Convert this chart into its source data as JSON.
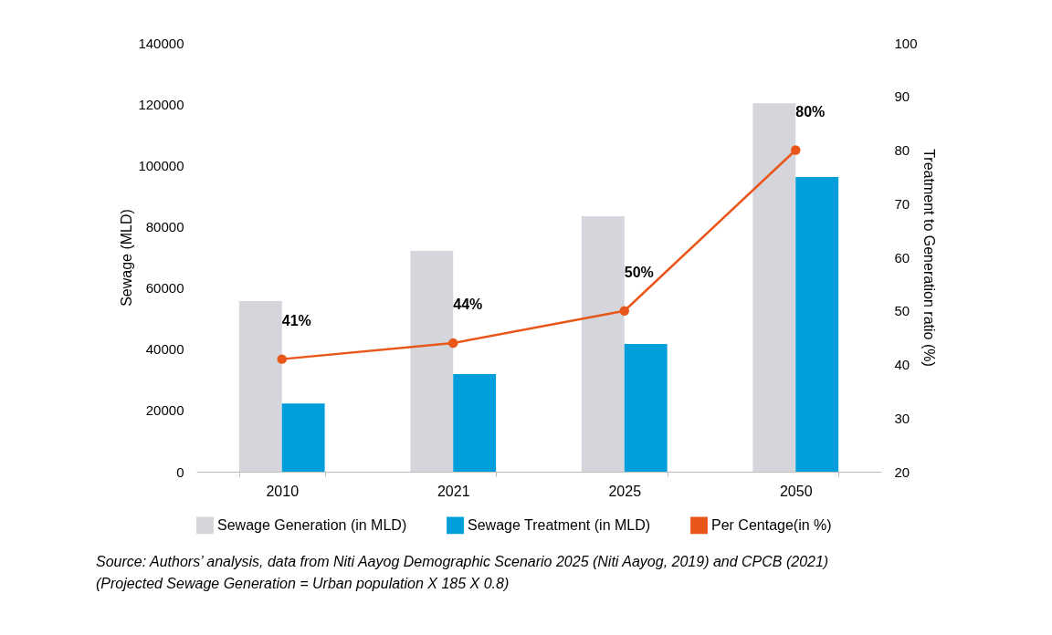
{
  "chart_data": {
    "type": "bar",
    "categories": [
      "2010",
      "2021",
      "2025",
      "2050"
    ],
    "series": [
      {
        "name": "Sewage Generation (in MLD)",
        "color": "#d5d6db",
        "values": [
          55700,
          72100,
          83400,
          120300
        ]
      },
      {
        "name": "Sewage Treatment (in MLD)",
        "color": "#009edb",
        "values": [
          22300,
          31900,
          41700,
          96200
        ]
      },
      {
        "name": "Per Centage(in %)",
        "type": "line",
        "axis": "y2",
        "color": "#e8561a",
        "marker": "circle",
        "values": [
          41,
          44,
          50,
          80
        ],
        "value_labels": [
          "41%",
          "44%",
          "50%",
          "80%"
        ]
      }
    ],
    "ylabel": "Sewage (MLD)",
    "y2label": "Treatment to Generation ratio (%)",
    "ylim": [
      0,
      140000
    ],
    "yticks": [
      0,
      20000,
      40000,
      60000,
      80000,
      100000,
      120000,
      140000
    ],
    "y2lim": [
      20,
      100
    ],
    "y2ticks": [
      20,
      30,
      40,
      50,
      60,
      70,
      80,
      90,
      100
    ],
    "legend": "bottom",
    "annotations": [
      "Source: Authors’ analysis, data from Niti Aayog Demographic Scenario 2025 (Niti Aayog, 2019) and CPCB (2021)",
      "(Projected Sewage Generation = Urban population X 185 X 0.8)"
    ]
  }
}
